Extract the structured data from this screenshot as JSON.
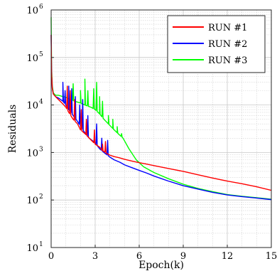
{
  "chart_data": {
    "type": "line",
    "title": "",
    "xlabel": "Epoch(k)",
    "ylabel": "Residuals",
    "xlim": [
      0,
      15
    ],
    "ylim_log10": [
      1,
      6
    ],
    "yscale": "log",
    "grid": true,
    "minor_grid": true,
    "legend_position": "top-right",
    "x_ticks": [
      "0",
      "3",
      "6",
      "9",
      "12",
      "15"
    ],
    "y_ticks": [
      {
        "base": "10",
        "exp": "1",
        "value": 10
      },
      {
        "base": "10",
        "exp": "2",
        "value": 100
      },
      {
        "base": "10",
        "exp": "3",
        "value": 1000
      },
      {
        "base": "10",
        "exp": "4",
        "value": 10000
      },
      {
        "base": "10",
        "exp": "5",
        "value": 100000
      },
      {
        "base": "10",
        "exp": "6",
        "value": 1000000
      }
    ],
    "series": [
      {
        "name": "RUN #1",
        "color": "#ff0000",
        "x": [
          0,
          0.03,
          0.08,
          0.15,
          0.3,
          0.5,
          0.8,
          1.0,
          1.2,
          1.5,
          1.8,
          2.0,
          2.3,
          2.6,
          3.0,
          3.3,
          3.5,
          3.8,
          4.0,
          4.3,
          4.6,
          5.0,
          5.5,
          6.0,
          6.5,
          7.0,
          8.0,
          9.0,
          10.0,
          11.0,
          12.0,
          13.0,
          14.0,
          15.0
        ],
        "y": [
          300000,
          45000,
          22000,
          17000,
          15000,
          13000,
          10500,
          9000,
          7000,
          5000,
          4000,
          3000,
          2500,
          2000,
          1500,
          1300,
          1100,
          950,
          880,
          820,
          780,
          720,
          660,
          610,
          570,
          530,
          460,
          400,
          340,
          290,
          250,
          220,
          190,
          160
        ],
        "spikes": [
          [
            1.1,
            25000
          ],
          [
            1.3,
            20000
          ],
          [
            1.6,
            13000
          ],
          [
            2.05,
            8000
          ],
          [
            2.4,
            5000
          ],
          [
            2.95,
            3000
          ],
          [
            3.5,
            1500
          ],
          [
            3.7,
            1700
          ]
        ]
      },
      {
        "name": "RUN #2",
        "color": "#0000ff",
        "x": [
          0,
          0.03,
          0.08,
          0.15,
          0.3,
          0.5,
          0.8,
          1.0,
          1.2,
          1.5,
          1.8,
          2.0,
          2.3,
          2.6,
          3.0,
          3.3,
          3.6,
          3.9,
          4.0,
          4.3,
          4.7,
          5.0,
          5.5,
          6.0,
          6.5,
          7.0,
          8.0,
          9.0,
          10.0,
          11.0,
          12.0,
          13.0,
          14.0,
          15.0
        ],
        "y": [
          300000,
          45000,
          22000,
          17000,
          15000,
          14000,
          12000,
          10000,
          8000,
          6000,
          4500,
          3500,
          2600,
          2000,
          1600,
          1200,
          1000,
          850,
          800,
          700,
          620,
          550,
          480,
          420,
          370,
          320,
          250,
          200,
          170,
          145,
          128,
          118,
          110,
          102
        ],
        "spikes": [
          [
            0.8,
            30000
          ],
          [
            0.95,
            20000
          ],
          [
            1.2,
            25000
          ],
          [
            1.4,
            22000
          ],
          [
            1.65,
            15000
          ],
          [
            1.95,
            10000
          ],
          [
            2.15,
            13000
          ],
          [
            2.5,
            6000
          ],
          [
            3.1,
            4000
          ],
          [
            3.45,
            2000
          ],
          [
            3.85,
            1800
          ]
        ]
      },
      {
        "name": "RUN #3",
        "color": "#00ff00",
        "x": [
          0,
          0.03,
          0.08,
          0.15,
          0.3,
          0.5,
          0.8,
          1.0,
          1.3,
          1.6,
          2.0,
          2.3,
          2.7,
          3.0,
          3.3,
          3.6,
          3.9,
          4.2,
          4.5,
          4.9,
          5.3,
          5.8,
          6.3,
          7.0,
          8.0,
          9.0,
          10.0,
          11.0,
          12.0,
          13.0,
          14.0,
          15.0
        ],
        "y": [
          700000,
          60000,
          25000,
          18000,
          16000,
          16000,
          15000,
          14500,
          13000,
          12000,
          11000,
          10000,
          9000,
          8000,
          6500,
          5000,
          4000,
          3200,
          2600,
          2000,
          1200,
          700,
          500,
          380,
          280,
          215,
          175,
          150,
          130,
          120,
          112,
          104
        ],
        "spikes": [
          [
            1.5,
            28000
          ],
          [
            2.0,
            20000
          ],
          [
            2.3,
            35000
          ],
          [
            2.5,
            20000
          ],
          [
            2.9,
            22000
          ],
          [
            3.1,
            30000
          ],
          [
            3.3,
            15000
          ],
          [
            3.5,
            12000
          ],
          [
            3.9,
            6000
          ],
          [
            4.2,
            5000
          ],
          [
            4.5,
            3500
          ],
          [
            4.8,
            2500
          ]
        ]
      }
    ]
  }
}
